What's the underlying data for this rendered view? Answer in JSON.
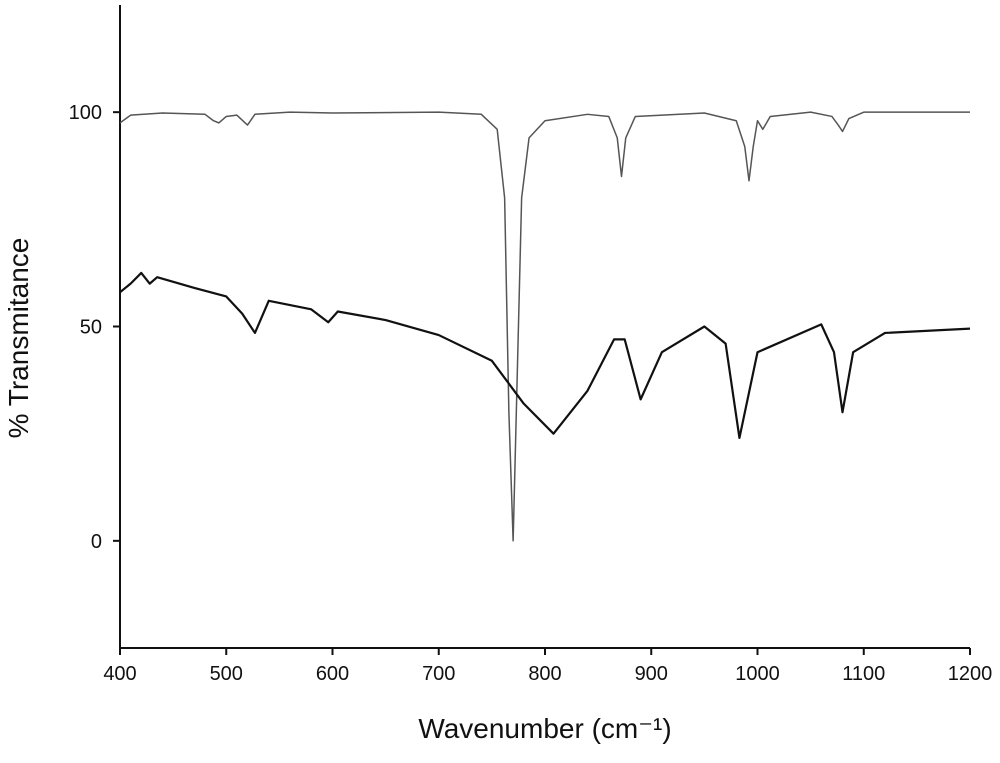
{
  "chart_data": {
    "type": "line",
    "xlabel": "Wavenumber (cm⁻¹)",
    "ylabel": "% Transmitance",
    "xlim": [
      400,
      1200
    ],
    "xticks": [
      400,
      500,
      600,
      700,
      800,
      900,
      1000,
      1100,
      1200
    ],
    "ylim": [
      -25,
      125
    ],
    "yticks": [
      0,
      50,
      100
    ],
    "series": [
      {
        "color": "#555555",
        "x": [
          400,
          410,
          440,
          480,
          488,
          493,
          500,
          510,
          520,
          527,
          560,
          600,
          700,
          740,
          755,
          762,
          766,
          770,
          774,
          778,
          785,
          800,
          840,
          860,
          868,
          872,
          876,
          885,
          950,
          980,
          988,
          992,
          996,
          1000,
          1005,
          1012,
          1050,
          1070,
          1076,
          1080,
          1086,
          1100,
          1200
        ],
        "values": [
          97.5,
          99.3,
          99.8,
          99.5,
          98,
          97.5,
          99,
          99.3,
          97,
          99.5,
          100,
          99.8,
          100,
          99.5,
          96,
          80,
          30,
          0,
          40,
          80,
          94,
          98,
          99.5,
          99,
          94,
          85,
          94,
          99,
          99.8,
          98,
          92,
          84,
          92,
          98,
          96,
          99,
          100,
          99,
          97,
          95.5,
          98.5,
          100,
          100
        ]
      },
      {
        "color": "#111111",
        "x": [
          400,
          410,
          420,
          428,
          435,
          470,
          500,
          515,
          527,
          540,
          580,
          596,
          605,
          650,
          700,
          750,
          780,
          808,
          840,
          865,
          875,
          890,
          910,
          950,
          970,
          983,
          1000,
          1060,
          1072,
          1080,
          1090,
          1120,
          1200
        ],
        "values": [
          58,
          60,
          62.5,
          60,
          61.5,
          59,
          57,
          53,
          48.5,
          56,
          54,
          51,
          53.5,
          51.5,
          48,
          42,
          32,
          25,
          35,
          47,
          47,
          33,
          44,
          50,
          46,
          24,
          44,
          50.5,
          44,
          30,
          44,
          48.5,
          49.5
        ]
      }
    ]
  }
}
